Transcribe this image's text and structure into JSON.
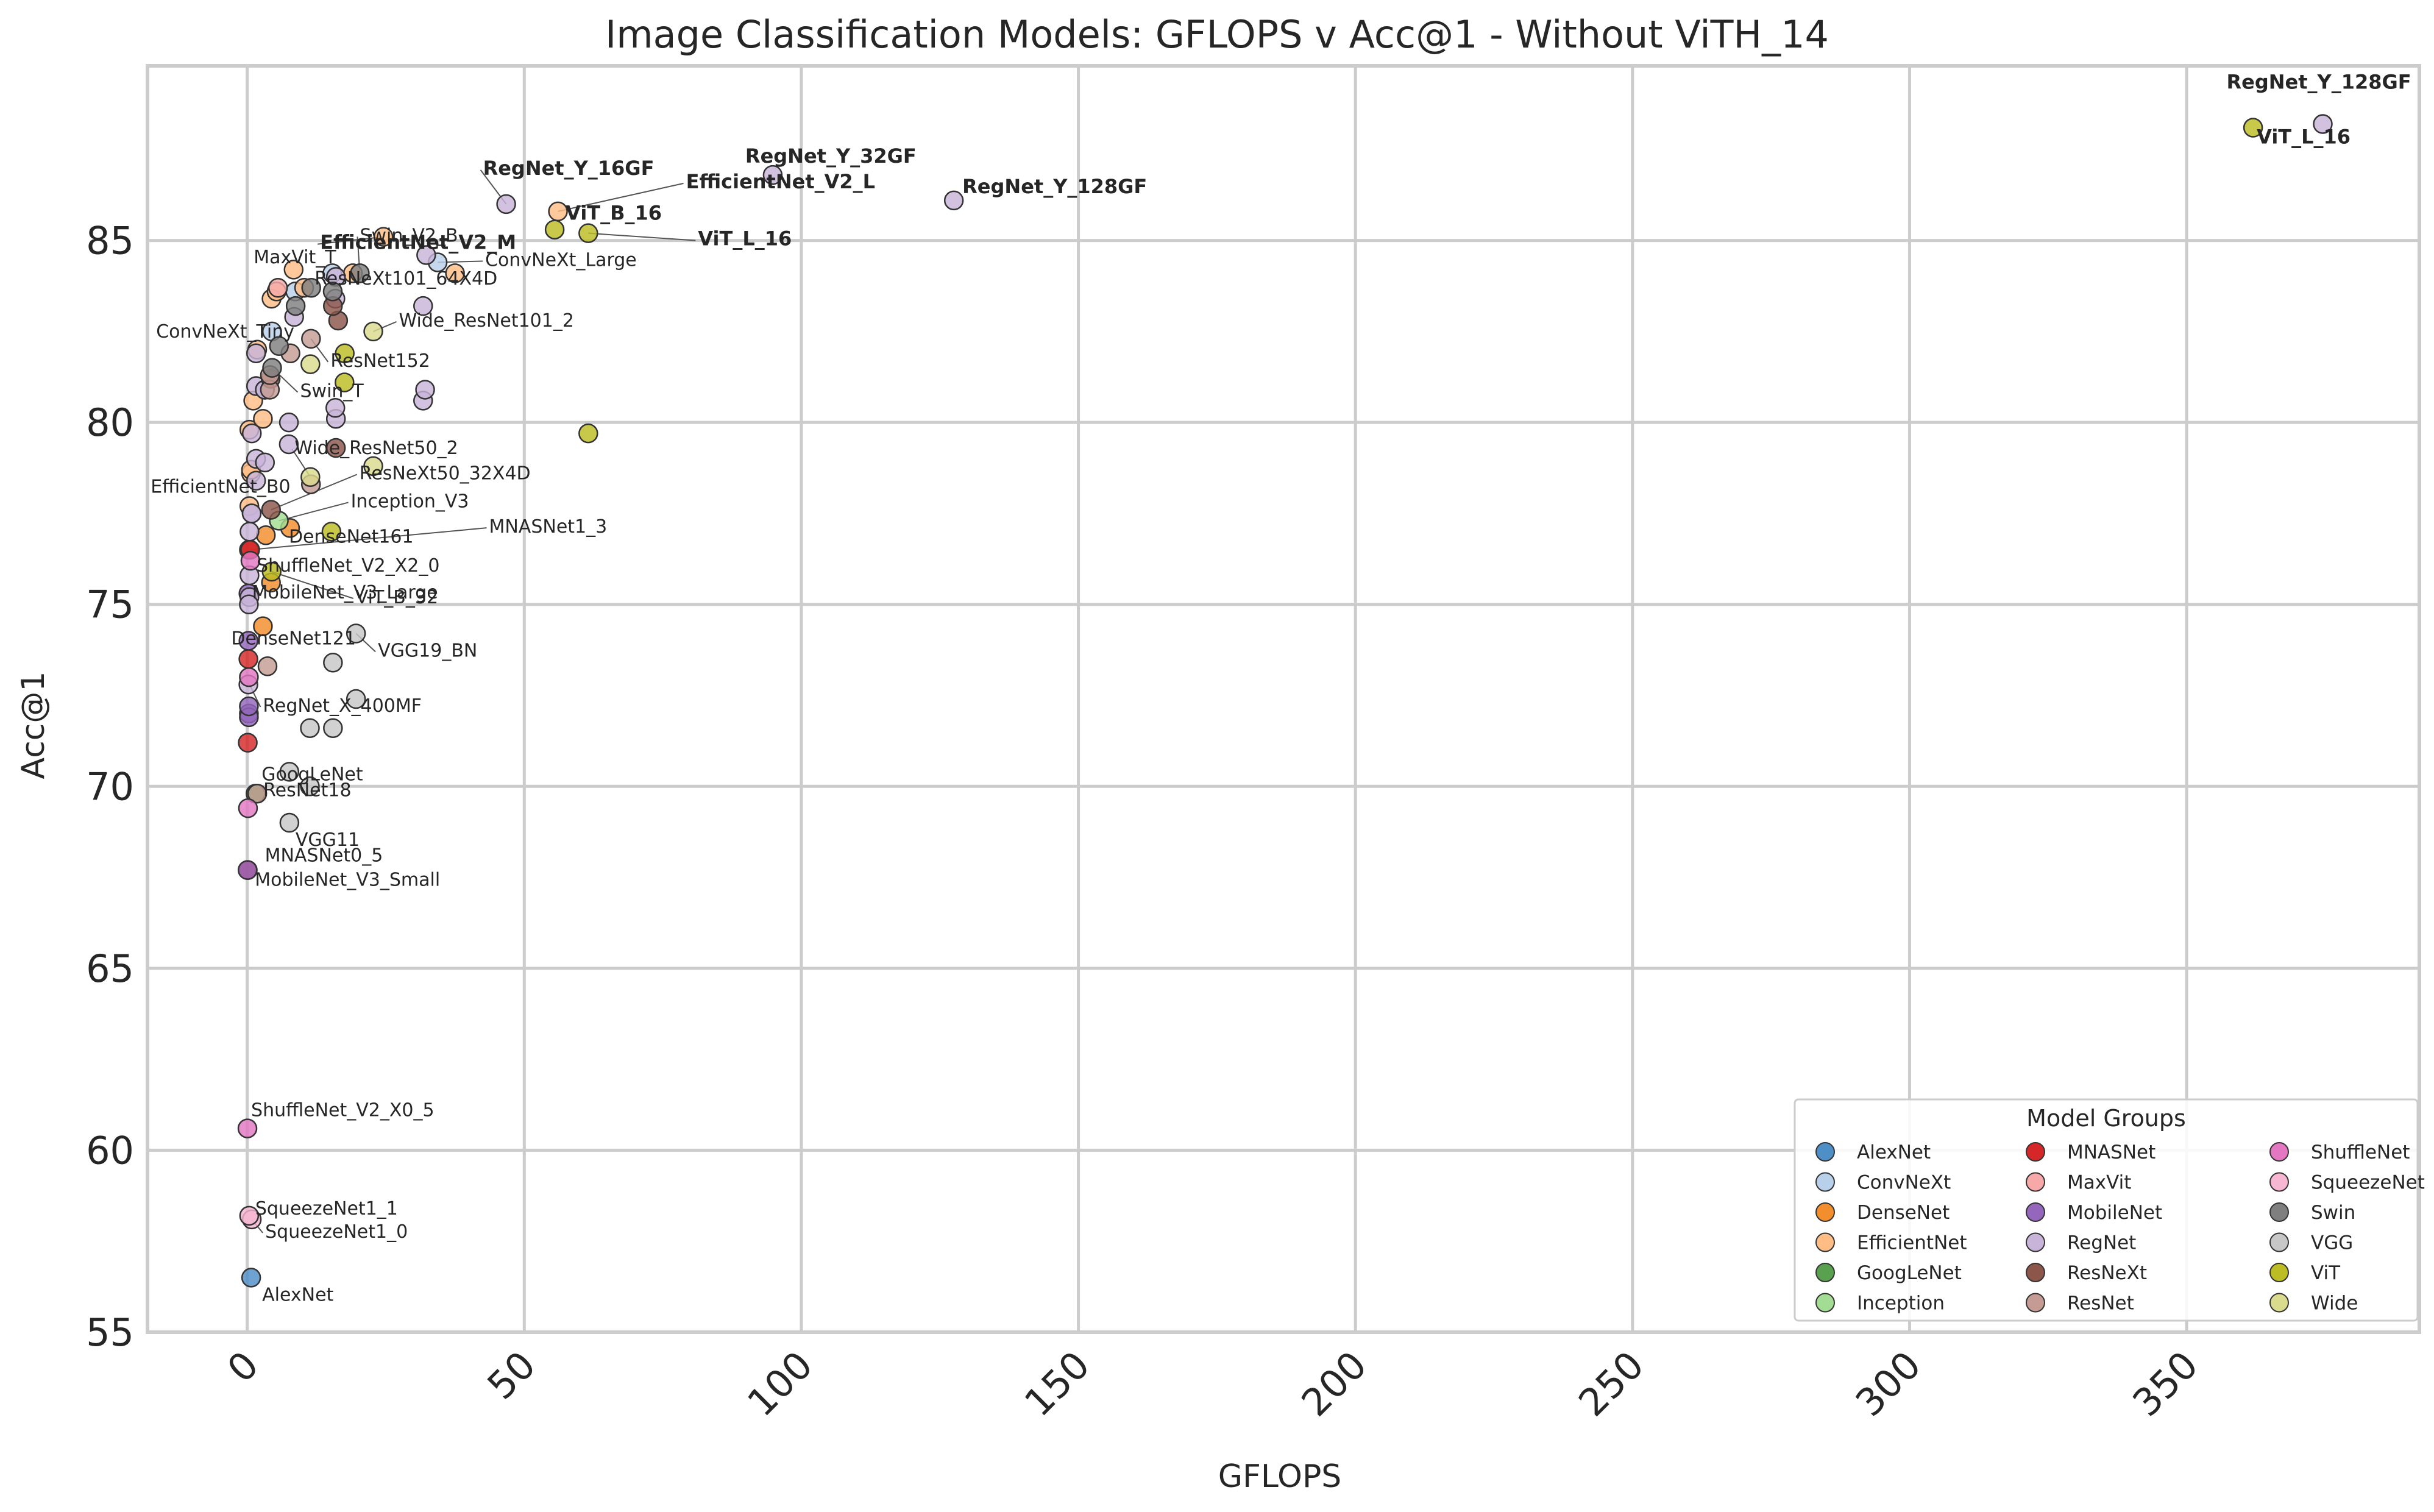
{
  "chart_data": {
    "type": "scatter",
    "title": "Image Classification Models: GFLOPS v Acc@1 - Without ViTH_14",
    "xlabel": "GFLOPS",
    "ylabel": "Acc@1",
    "xlim": [
      -18,
      392
    ],
    "ylim": [
      55,
      89.8
    ],
    "xticks": [
      0,
      50,
      100,
      150,
      200,
      250,
      300,
      350
    ],
    "yticks": [
      55,
      60,
      65,
      70,
      75,
      80,
      85
    ],
    "grid": true,
    "legend": {
      "title": "Model Groups",
      "placement": "lower-right",
      "columns": 3
    },
    "series": [
      {
        "name": "AlexNet",
        "color": "#4e8fc7",
        "points": [
          [
            0.71,
            56.5
          ]
        ]
      },
      {
        "name": "ConvNeXt",
        "color": "#b9d0ea",
        "points": [
          [
            4.46,
            82.5
          ],
          [
            8.68,
            83.6
          ],
          [
            15.36,
            84.1
          ],
          [
            34.36,
            84.4
          ]
        ]
      },
      {
        "name": "DenseNet",
        "color": "#f28e2b",
        "points": [
          [
            2.83,
            74.4
          ],
          [
            4.29,
            75.6
          ],
          [
            3.36,
            76.9
          ],
          [
            7.73,
            77.1
          ]
        ]
      },
      {
        "name": "EfficientNet",
        "color": "#ffbd85",
        "points": [
          [
            0.39,
            77.7
          ],
          [
            0.69,
            78.6
          ],
          [
            1.09,
            80.6
          ],
          [
            1.8,
            82.0
          ],
          [
            4.39,
            83.4
          ],
          [
            10.27,
            83.7
          ],
          [
            19.07,
            84.1
          ],
          [
            0.39,
            79.8
          ],
          [
            0.69,
            78.7
          ],
          [
            2.83,
            80.1
          ],
          [
            5.3,
            83.6
          ],
          [
            8.37,
            84.2
          ],
          [
            24.58,
            85.1
          ],
          [
            56.08,
            85.8
          ],
          [
            37.5,
            84.1
          ]
        ]
      },
      {
        "name": "GoogLeNet",
        "color": "#59a14f",
        "points": [
          [
            1.5,
            69.8
          ]
        ]
      },
      {
        "name": "Inception",
        "color": "#a3dd93",
        "points": [
          [
            5.71,
            77.3
          ]
        ]
      },
      {
        "name": "MNASNet",
        "color": "#d62728",
        "points": [
          [
            0.1,
            67.7
          ],
          [
            0.21,
            73.5
          ],
          [
            0.31,
            76.5
          ],
          [
            0.53,
            76.5
          ],
          [
            0.1,
            71.2
          ]
        ]
      },
      {
        "name": "MaxVit",
        "color": "#f7a9a9",
        "points": [
          [
            5.56,
            83.7
          ]
        ]
      },
      {
        "name": "MobileNet",
        "color": "#9467bd",
        "points": [
          [
            0.06,
            67.7
          ],
          [
            0.22,
            75.3
          ],
          [
            0.3,
            72.0
          ],
          [
            0.22,
            74.0
          ],
          [
            0.3,
            71.9
          ],
          [
            0.3,
            72.2
          ]
        ]
      },
      {
        "name": "RegNet",
        "color": "#c8b4d9",
        "points": [
          [
            0.41,
            77.0
          ],
          [
            0.83,
            79.7
          ],
          [
            1.6,
            81.0
          ],
          [
            3.2,
            80.9
          ],
          [
            8.47,
            82.9
          ],
          [
            15.91,
            83.4
          ],
          [
            31.74,
            83.2
          ],
          [
            0.21,
            72.8
          ],
          [
            0.41,
            75.8
          ],
          [
            0.8,
            77.5
          ],
          [
            1.6,
            79.0
          ],
          [
            3.18,
            80.9
          ],
          [
            7.52,
            80.0
          ],
          [
            16.0,
            80.1
          ],
          [
            31.74,
            80.6
          ],
          [
            0.4,
            75.2
          ],
          [
            0.8,
            77.5
          ],
          [
            1.6,
            78.4
          ],
          [
            3.2,
            78.9
          ],
          [
            7.5,
            79.4
          ],
          [
            15.9,
            80.4
          ],
          [
            32.1,
            80.9
          ],
          [
            0.3,
            75.0
          ],
          [
            46.73,
            86.0
          ],
          [
            94.83,
            86.8
          ],
          [
            127.52,
            86.1
          ],
          [
            374.57,
            88.2
          ],
          [
            16.0,
            84.0
          ],
          [
            32.3,
            84.6
          ],
          [
            1.6,
            81.9
          ]
        ]
      },
      {
        "name": "ResNeXt",
        "color": "#8c564b",
        "points": [
          [
            4.23,
            81.2
          ],
          [
            16.41,
            82.8
          ],
          [
            15.46,
            83.2
          ],
          [
            16.0,
            79.3
          ],
          [
            4.3,
            77.6
          ]
        ]
      },
      {
        "name": "ResNet",
        "color": "#c49c94",
        "points": [
          [
            1.81,
            69.8
          ],
          [
            3.66,
            73.3
          ],
          [
            4.09,
            80.9
          ],
          [
            7.8,
            81.9
          ],
          [
            11.51,
            82.3
          ],
          [
            4.1,
            81.3
          ],
          [
            11.5,
            78.3
          ]
        ]
      },
      {
        "name": "ShuffleNet",
        "color": "#e377c2",
        "points": [
          [
            0.04,
            60.6
          ],
          [
            0.14,
            69.4
          ],
          [
            0.3,
            73.0
          ],
          [
            0.58,
            76.2
          ]
        ]
      },
      {
        "name": "SqueezeNet",
        "color": "#f7b6d2",
        "points": [
          [
            0.82,
            58.1
          ],
          [
            0.35,
            58.2
          ]
        ]
      },
      {
        "name": "Swin",
        "color": "#7f7f7f",
        "points": [
          [
            4.49,
            81.5
          ],
          [
            8.74,
            83.2
          ],
          [
            15.43,
            83.6
          ],
          [
            5.73,
            82.1
          ],
          [
            11.55,
            83.7
          ],
          [
            20.32,
            84.1
          ]
        ]
      },
      {
        "name": "VGG",
        "color": "#c7c7c7",
        "points": [
          [
            7.61,
            69.0
          ],
          [
            7.61,
            70.4
          ],
          [
            11.31,
            70.0
          ],
          [
            11.31,
            71.6
          ],
          [
            15.47,
            71.6
          ],
          [
            15.47,
            73.4
          ],
          [
            19.63,
            72.4
          ],
          [
            19.63,
            74.2
          ]
        ]
      },
      {
        "name": "ViT",
        "color": "#bcbd22",
        "points": [
          [
            4.41,
            75.9
          ],
          [
            17.56,
            81.1
          ],
          [
            55.48,
            85.3
          ],
          [
            61.55,
            79.7
          ],
          [
            361.99,
            88.1
          ],
          [
            61.55,
            85.2
          ],
          [
            15.2,
            77.0
          ],
          [
            17.6,
            81.9
          ]
        ]
      },
      {
        "name": "Wide",
        "color": "#dbdb8d",
        "points": [
          [
            11.4,
            78.5
          ],
          [
            22.75,
            78.8
          ],
          [
            11.4,
            81.6
          ],
          [
            22.75,
            82.5
          ]
        ]
      }
    ],
    "annotations": [
      {
        "text": "AlexNet",
        "x": 0.71,
        "y": 56.5,
        "bold": false
      },
      {
        "text": "SqueezeNet1_0",
        "x": 0.82,
        "y": 58.1,
        "bold": false
      },
      {
        "text": "SqueezeNet1_1",
        "x": 0.35,
        "y": 58.2,
        "bold": false
      },
      {
        "text": "ShuffleNet_V2_X0_5",
        "x": 0.04,
        "y": 60.6,
        "bold": false
      },
      {
        "text": "MobileNet_V3_Small",
        "x": 0.06,
        "y": 67.7,
        "bold": false
      },
      {
        "text": "MNASNet0_5",
        "x": 0.1,
        "y": 67.7,
        "bold": false
      },
      {
        "text": "VGG11",
        "x": 7.61,
        "y": 69.0,
        "bold": false
      },
      {
        "text": "ResNet18",
        "x": 1.81,
        "y": 69.8,
        "bold": false
      },
      {
        "text": "GoogLeNet",
        "x": 1.5,
        "y": 69.8,
        "bold": false
      },
      {
        "text": "RegNet_X_400MF",
        "x": 0.41,
        "y": 72.8,
        "bold": false
      },
      {
        "text": "DenseNet121",
        "x": 2.83,
        "y": 74.4,
        "bold": false
      },
      {
        "text": "VGG19_BN",
        "x": 19.63,
        "y": 74.2,
        "bold": false
      },
      {
        "text": "MobileNet_V3_Large",
        "x": 0.22,
        "y": 75.3,
        "bold": false
      },
      {
        "text": "ViT_B_32",
        "x": 4.41,
        "y": 75.9,
        "bold": false
      },
      {
        "text": "ShuffleNet_V2_X2_0",
        "x": 0.58,
        "y": 76.2,
        "bold": false
      },
      {
        "text": "MNASNet1_3",
        "x": 0.53,
        "y": 76.5,
        "bold": false
      },
      {
        "text": "DenseNet161",
        "x": 7.73,
        "y": 77.1,
        "bold": false
      },
      {
        "text": "Inception_V3",
        "x": 5.71,
        "y": 77.3,
        "bold": false
      },
      {
        "text": "ResNeXt50_32X4D",
        "x": 4.3,
        "y": 77.6,
        "bold": false
      },
      {
        "text": "EfficientNet_B0",
        "x": 0.39,
        "y": 77.7,
        "bold": false
      },
      {
        "text": "Wide_ResNet50_2",
        "x": 11.4,
        "y": 78.5,
        "bold": false
      },
      {
        "text": "Swin_T",
        "x": 4.49,
        "y": 81.5,
        "bold": false
      },
      {
        "text": "ResNet152",
        "x": 11.51,
        "y": 82.3,
        "bold": false
      },
      {
        "text": "ConvNeXt_Tiny",
        "x": 4.46,
        "y": 82.5,
        "bold": false
      },
      {
        "text": "Wide_ResNet101_2",
        "x": 22.75,
        "y": 82.5,
        "bold": false
      },
      {
        "text": "ResNeXt101_64X4D",
        "x": 15.46,
        "y": 83.2,
        "bold": false
      },
      {
        "text": "MaxVit_T",
        "x": 5.56,
        "y": 83.7,
        "bold": false
      },
      {
        "text": "ConvNeXt_Large",
        "x": 34.36,
        "y": 84.4,
        "bold": false
      },
      {
        "text": "Swin_V2_B",
        "x": 20.32,
        "y": 84.1,
        "bold": false
      },
      {
        "text": "EfficientNet_V2_M",
        "x": 24.58,
        "y": 85.1,
        "bold": true
      },
      {
        "text": "ViT_B_16",
        "x": 55.48,
        "y": 85.3,
        "bold": true
      },
      {
        "text": "ViT_L_16",
        "x": 61.55,
        "y": 85.2,
        "bold": true
      },
      {
        "text": "EfficientNet_V2_L",
        "x": 56.08,
        "y": 85.8,
        "bold": true
      },
      {
        "text": "RegNet_Y_16GF",
        "x": 46.73,
        "y": 86.0,
        "bold": true
      },
      {
        "text": "RegNet_Y_32GF",
        "x": 94.83,
        "y": 86.8,
        "bold": true
      },
      {
        "text": "RegNet_Y_128GF",
        "x": 127.52,
        "y": 86.1,
        "bold": true
      },
      {
        "text": "RegNet_Y_128GF",
        "x": 374.57,
        "y": 88.2,
        "bold": true
      },
      {
        "text": "ViT_L_16",
        "x": 361.99,
        "y": 88.1,
        "bold": true
      }
    ]
  }
}
